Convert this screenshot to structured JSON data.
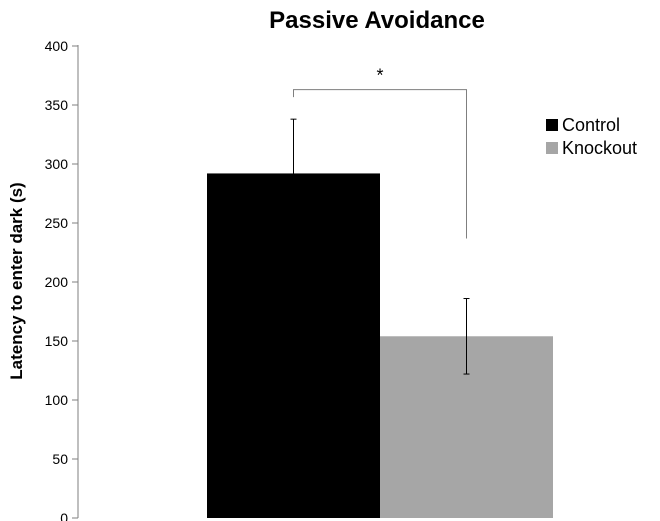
{
  "chart_data": {
    "type": "bar",
    "title": "Passive Avoidance",
    "xlabel": "",
    "ylabel": "Latency to enter dark (s)",
    "ylim": [
      0,
      400
    ],
    "yticks": [
      "0",
      "50",
      "100",
      "150",
      "200",
      "250",
      "300",
      "350",
      "400"
    ],
    "grid": false,
    "legend_position": "right",
    "significance_label": "*",
    "series": [
      {
        "name": "Control",
        "value": 292,
        "error": 46,
        "color": "#000000"
      },
      {
        "name": "Knockout",
        "value": 154,
        "error": 32,
        "color": "#a6a6a6"
      }
    ]
  }
}
